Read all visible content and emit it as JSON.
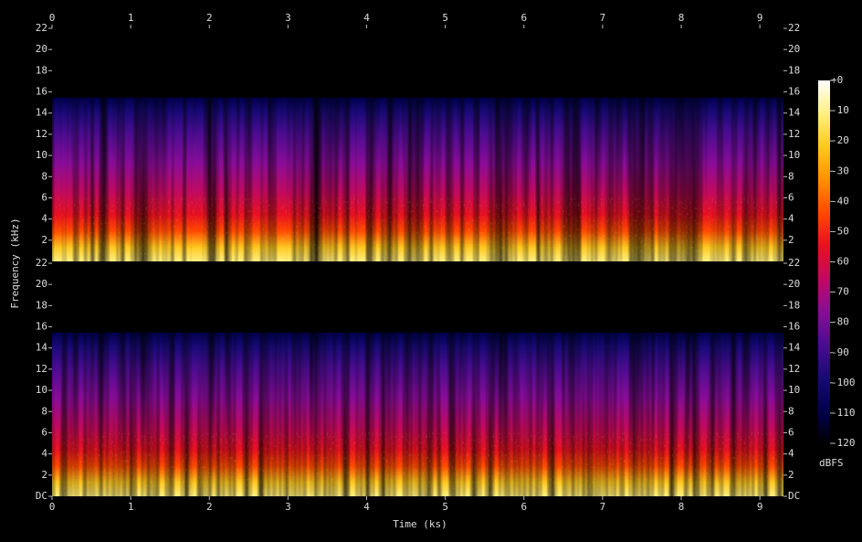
{
  "chart_data": {
    "type": "spectrogram",
    "x_label": "Time (ks)",
    "y_label": "Frequency (kHz)",
    "xlim": [
      0,
      9.3
    ],
    "xticks": [
      0,
      1,
      2,
      3,
      4,
      5,
      6,
      7,
      8,
      9
    ],
    "ylim": [
      0,
      22
    ],
    "channels": [
      {
        "yticks": [
          2,
          4,
          6,
          8,
          10,
          12,
          14,
          16,
          18,
          20,
          22
        ]
      },
      {
        "yticks": [
          {
            "value": 0,
            "label": "DC"
          },
          2,
          4,
          6,
          8,
          10,
          12,
          14,
          16,
          18,
          20,
          22
        ]
      }
    ],
    "colorbar": {
      "label": "dBFS",
      "lim": [
        -120,
        0
      ],
      "ticks": [
        {
          "value": 0,
          "label": "+0"
        },
        -10,
        -20,
        -30,
        -40,
        -50,
        -60,
        -70,
        -80,
        -90,
        -100,
        -110,
        -120
      ],
      "colormap": [
        "#000000",
        "#000050",
        "#1a0a78",
        "#4a0c90",
        "#8a0c98",
        "#c00a60",
        "#e81020",
        "#ff4a00",
        "#ff9000",
        "#ffc820",
        "#fff080",
        "#ffffff"
      ]
    }
  }
}
